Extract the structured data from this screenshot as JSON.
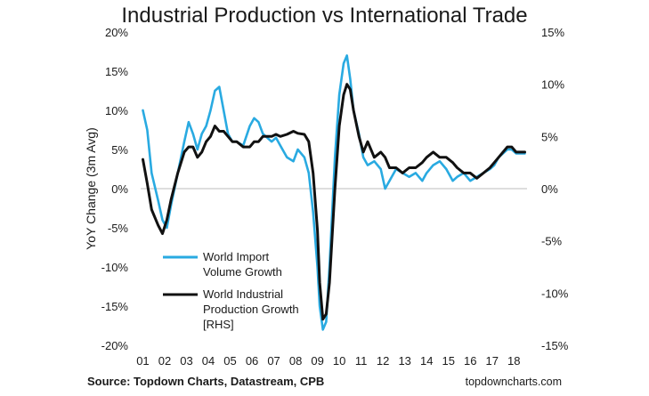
{
  "chart_data": {
    "type": "line",
    "title": "Industrial Production vs International Trade",
    "ylabel": "YoY Change (3m Avg)",
    "x_ticks": [
      "01",
      "02",
      "03",
      "04",
      "05",
      "06",
      "07",
      "08",
      "09",
      "10",
      "11",
      "12",
      "13",
      "14",
      "15",
      "16",
      "17",
      "18"
    ],
    "ylim_left": [
      -20,
      20
    ],
    "ylim_right": [
      -15,
      15
    ],
    "left_ticks": [
      "20%",
      "15%",
      "10%",
      "5%",
      "0%",
      "-5%",
      "-10%",
      "-15%",
      "-20%"
    ],
    "right_ticks": [
      "15%",
      "10%",
      "5%",
      "0%",
      "-5%",
      "-10%",
      "-15%"
    ],
    "legend_position": "bottom-left",
    "series": [
      {
        "name": "World Import Volume Growth",
        "color": "#29aae1",
        "axis": "left",
        "x": [
          2001.0,
          2001.2,
          2001.4,
          2001.7,
          2001.9,
          2002.1,
          2002.3,
          2002.6,
          2002.9,
          2003.1,
          2003.3,
          2003.5,
          2003.7,
          2003.9,
          2004.1,
          2004.3,
          2004.5,
          2004.7,
          2004.9,
          2005.1,
          2005.3,
          2005.6,
          2005.9,
          2006.1,
          2006.3,
          2006.5,
          2006.7,
          2006.9,
          2007.1,
          2007.3,
          2007.6,
          2007.9,
          2008.1,
          2008.4,
          2008.6,
          2008.8,
          2009.0,
          2009.1,
          2009.25,
          2009.4,
          2009.55,
          2009.8,
          2010.0,
          2010.2,
          2010.35,
          2010.5,
          2010.65,
          2010.9,
          2011.1,
          2011.3,
          2011.6,
          2011.9,
          2012.1,
          2012.3,
          2012.6,
          2012.9,
          2013.2,
          2013.5,
          2013.8,
          2014.0,
          2014.3,
          2014.6,
          2014.9,
          2015.2,
          2015.4,
          2015.7,
          2016.0,
          2016.3,
          2016.6,
          2016.9,
          2017.1,
          2017.3,
          2017.5,
          2017.7,
          2017.9,
          2018.1,
          2018.3,
          2018.5
        ],
        "values": [
          10.0,
          7.5,
          2.0,
          -1.5,
          -4.0,
          -5.0,
          -2.0,
          2.0,
          6.0,
          8.5,
          7.0,
          5.0,
          7.0,
          8.0,
          10.0,
          12.5,
          13.0,
          10.0,
          7.0,
          6.0,
          6.0,
          5.5,
          8.0,
          9.0,
          8.5,
          7.0,
          6.5,
          6.0,
          6.5,
          5.5,
          4.0,
          3.5,
          5.0,
          4.0,
          2.0,
          -3.0,
          -10.0,
          -15.0,
          -18.0,
          -17.0,
          -10.0,
          4.0,
          12.0,
          16.0,
          17.0,
          14.0,
          10.0,
          7.0,
          4.0,
          3.0,
          3.5,
          2.5,
          0.0,
          1.0,
          2.5,
          2.0,
          1.5,
          2.0,
          1.0,
          2.0,
          3.0,
          3.5,
          2.5,
          1.0,
          1.5,
          2.0,
          1.0,
          1.5,
          2.0,
          2.5,
          3.0,
          4.0,
          4.5,
          5.0,
          5.0,
          4.5,
          4.5,
          4.5
        ]
      },
      {
        "name": "World Industrial Production Growth [RHS]",
        "color": "#111111",
        "axis": "right",
        "x": [
          2001.0,
          2001.2,
          2001.4,
          2001.7,
          2001.9,
          2002.1,
          2002.3,
          2002.6,
          2002.9,
          2003.1,
          2003.3,
          2003.5,
          2003.7,
          2003.9,
          2004.1,
          2004.3,
          2004.5,
          2004.7,
          2004.9,
          2005.1,
          2005.3,
          2005.6,
          2005.9,
          2006.1,
          2006.3,
          2006.5,
          2006.7,
          2006.9,
          2007.1,
          2007.3,
          2007.6,
          2007.9,
          2008.1,
          2008.4,
          2008.6,
          2008.8,
          2009.0,
          2009.1,
          2009.25,
          2009.4,
          2009.55,
          2009.8,
          2010.0,
          2010.2,
          2010.35,
          2010.5,
          2010.65,
          2010.9,
          2011.1,
          2011.3,
          2011.6,
          2011.9,
          2012.1,
          2012.3,
          2012.6,
          2012.9,
          2013.2,
          2013.5,
          2013.8,
          2014.0,
          2014.3,
          2014.6,
          2014.9,
          2015.2,
          2015.4,
          2015.7,
          2016.0,
          2016.3,
          2016.6,
          2016.9,
          2017.1,
          2017.3,
          2017.5,
          2017.7,
          2017.9,
          2018.1,
          2018.3,
          2018.5
        ],
        "values": [
          2.8,
          0.5,
          -2.0,
          -3.5,
          -4.3,
          -3.0,
          -1.0,
          1.5,
          3.5,
          4.0,
          4.0,
          3.0,
          3.5,
          4.5,
          5.0,
          6.0,
          5.5,
          5.5,
          5.0,
          4.5,
          4.5,
          4.0,
          4.0,
          4.5,
          4.5,
          5.0,
          5.0,
          5.0,
          5.2,
          5.0,
          5.2,
          5.5,
          5.3,
          5.2,
          4.5,
          1.5,
          -4.0,
          -9.0,
          -12.5,
          -12.0,
          -9.0,
          0.0,
          6.0,
          9.0,
          10.0,
          9.5,
          7.5,
          5.0,
          3.5,
          4.5,
          3.0,
          3.5,
          3.0,
          2.0,
          2.0,
          1.5,
          2.0,
          2.0,
          2.5,
          3.0,
          3.5,
          3.0,
          3.0,
          2.5,
          2.0,
          1.5,
          1.5,
          1.0,
          1.5,
          2.0,
          2.5,
          3.0,
          3.5,
          4.0,
          4.0,
          3.5,
          3.5,
          3.5
        ]
      }
    ]
  },
  "legend": [
    {
      "lines": [
        "World Import",
        "Volume Growth"
      ],
      "color": "#29aae1"
    },
    {
      "lines": [
        "World Industrial",
        "Production Growth",
        "[RHS]"
      ],
      "color": "#111111"
    }
  ],
  "footer": {
    "source": "Source: Topdown Charts, Datastream, CPB",
    "credit": "topdowncharts.com"
  }
}
